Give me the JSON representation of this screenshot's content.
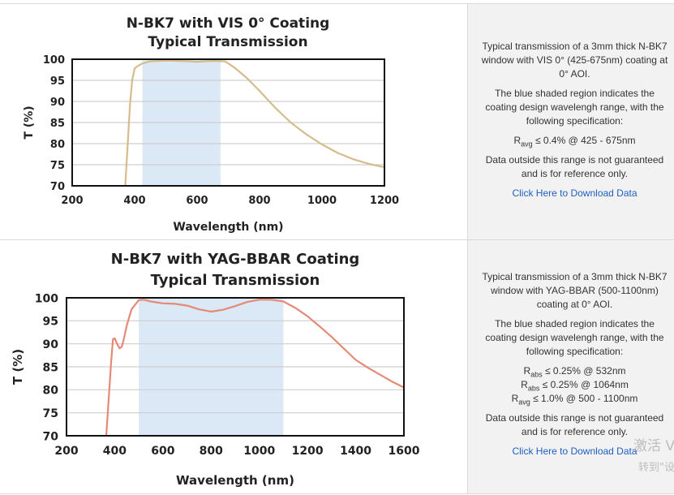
{
  "rows": [
    {
      "description": {
        "p1": "Typical transmission of a 3mm thick N-BK7 window with VIS 0° (425-675nm) coating at 0° AOI.",
        "p2": "The blue shaded region indicates the coating design wavelengh range, with the following specification:",
        "specs": [
          {
            "sym": "R",
            "sub": "avg",
            "text": " ≤ 0.4% @ 425 - 675nm"
          }
        ],
        "p3": "Data outside this range is not guaranteed and is for reference only.",
        "link": "Click Here to Download Data"
      }
    },
    {
      "description": {
        "p1": "Typical transmission of a 3mm thick N-BK7 window with YAG-BBAR (500-1100nm) coating at 0° AOI.",
        "p2": "The blue shaded region indicates the coating design wavelengh range, with the following specification:",
        "specs": [
          {
            "sym": "R",
            "sub": "abs",
            "text": " ≤ 0.25% @ 532nm"
          },
          {
            "sym": "R",
            "sub": "abs",
            "text": " ≤ 0.25% @ 1064nm"
          },
          {
            "sym": "R",
            "sub": "avg",
            "text": " ≤ 1.0% @ 500 - 1100nm"
          }
        ],
        "p3": "Data outside this range is not guaranteed and is for reference only.",
        "link": "Click Here to Download Data"
      }
    }
  ],
  "watermark": {
    "line1": "激活 V",
    "line2": "转到\"设"
  },
  "chart_data": [
    {
      "type": "line",
      "title": "N-BK7 with VIS 0° Coating",
      "subtitle": "Typical Transmission",
      "xlabel": "Wavelength (nm)",
      "ylabel": "T (%)",
      "xlim": [
        200,
        1200
      ],
      "ylim": [
        70,
        100
      ],
      "xticks": [
        200,
        400,
        600,
        800,
        1000,
        1200
      ],
      "yticks": [
        70,
        75,
        80,
        85,
        90,
        95,
        100
      ],
      "grid": "horizontal",
      "shaded_range": [
        425,
        675
      ],
      "shade_color": "#dbe8f5",
      "line_color": "#d6bc8c",
      "series": [
        {
          "x": [
            370,
            378,
            385,
            392,
            400,
            410,
            425,
            450,
            500,
            550,
            600,
            650,
            690,
            720,
            760,
            800,
            850,
            900,
            950,
            1000,
            1050,
            1100,
            1150,
            1200
          ],
          "values": [
            70,
            80,
            89,
            95,
            97.8,
            98.4,
            99.0,
            99.5,
            99.7,
            99.6,
            99.4,
            99.6,
            99.5,
            98.0,
            95.5,
            92.5,
            88.5,
            85.0,
            82.2,
            79.8,
            77.8,
            76.3,
            75.2,
            74.4
          ]
        }
      ]
    },
    {
      "type": "line",
      "title": "N-BK7 with YAG-BBAR Coating",
      "subtitle": "Typical Transmission",
      "xlabel": "Wavelength (nm)",
      "ylabel": "T (%)",
      "xlim": [
        200,
        1600
      ],
      "ylim": [
        70,
        100
      ],
      "xticks": [
        200,
        400,
        600,
        800,
        1000,
        1200,
        1400,
        1600
      ],
      "yticks": [
        70,
        75,
        80,
        85,
        90,
        95,
        100
      ],
      "grid": "horizontal",
      "shaded_range": [
        500,
        1100
      ],
      "shade_color": "#dbe8f5",
      "line_color": "#e58a76",
      "series": [
        {
          "x": [
            365,
            375,
            385,
            393,
            400,
            410,
            420,
            430,
            440,
            450,
            470,
            500,
            520,
            550,
            600,
            650,
            700,
            750,
            800,
            850,
            900,
            950,
            1000,
            1050,
            1100,
            1150,
            1200,
            1250,
            1300,
            1350,
            1400,
            1450,
            1500,
            1550,
            1600
          ],
          "values": [
            70,
            78,
            86,
            91.0,
            91.2,
            90.0,
            89.0,
            89.4,
            91.5,
            94.0,
            97.5,
            99.5,
            99.6,
            99.2,
            98.8,
            98.7,
            98.3,
            97.5,
            97.0,
            97.4,
            98.2,
            99.1,
            99.6,
            99.6,
            99.2,
            97.8,
            96.0,
            93.8,
            91.5,
            89.0,
            86.5,
            84.8,
            83.3,
            81.8,
            80.5
          ]
        }
      ]
    }
  ]
}
